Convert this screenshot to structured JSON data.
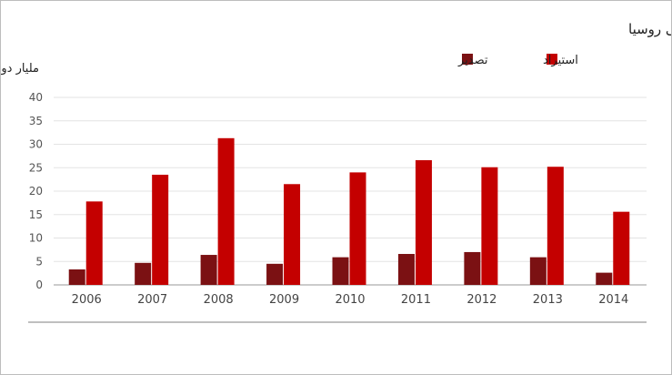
{
  "chart_data": {
    "type": "bar",
    "title": "الاستيراد والتصدير التركي من والى روسيا",
    "ylabel": "مليار دولار",
    "xlabel": "",
    "categories": [
      "2006",
      "2007",
      "2008",
      "2009",
      "2010",
      "2011",
      "2012",
      "2013",
      "2014"
    ],
    "series": [
      {
        "name": "تصدير",
        "color": "#7b1113",
        "values": [
          3.3,
          4.7,
          6.4,
          4.5,
          5.9,
          6.6,
          7.0,
          5.9,
          2.6
        ]
      },
      {
        "name": "استيراد",
        "color": "#c40000",
        "values": [
          17.8,
          23.5,
          31.3,
          21.5,
          24.0,
          26.6,
          25.1,
          25.2,
          15.6
        ]
      }
    ],
    "ylim": [
      0,
      40
    ],
    "yticks": [
      "0",
      "5",
      "10",
      "15",
      "20",
      "25",
      "30",
      "35",
      "40"
    ],
    "grid": true,
    "legend_position": "top-right"
  }
}
